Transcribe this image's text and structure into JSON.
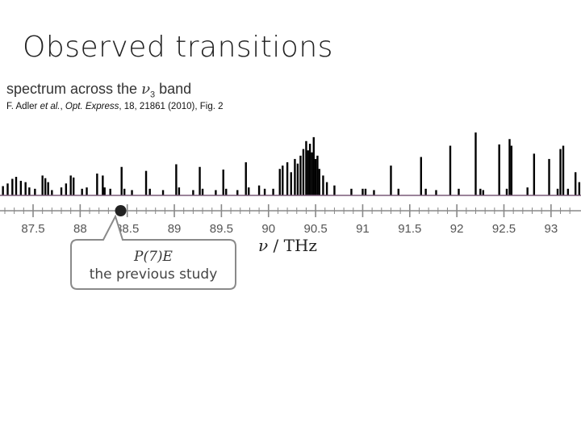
{
  "slide": {
    "title": "Observed transitions"
  },
  "figure": {
    "subtitle_prefix": "spectrum across the ",
    "subtitle_symbol": "ν",
    "subtitle_subscript": "3",
    "subtitle_suffix": " band",
    "citation_authors": "F. Adler ",
    "citation_etal": "et al.",
    "citation_sep": ", ",
    "citation_journal": "Opt. Express",
    "citation_rest": ", 18, 21861 (2010), Fig. 2"
  },
  "axis": {
    "unit_symbol": "ν",
    "unit_rest": " / THz"
  },
  "callout": {
    "line1": "P(7)E",
    "line2": "the previous study"
  },
  "colors": {
    "spectrum": "#000000",
    "baseline": "#7a5a78",
    "axis": "#888888",
    "marker": "#222222"
  },
  "chart_data": {
    "type": "line",
    "xlabel": "ν / THz",
    "xlim": [
      87.0,
      93.3
    ],
    "ticks": [
      "87.5",
      "88",
      "88.5",
      "89",
      "89.5",
      "90",
      "90.5",
      "91",
      "91.5",
      "92",
      "92.5",
      "93"
    ],
    "tick_values": [
      87.5,
      88.0,
      88.5,
      89.0,
      89.5,
      90.0,
      90.5,
      91.0,
      91.5,
      92.0,
      92.5,
      93.0
    ],
    "marked_point": {
      "x": 88.43,
      "label": "P(7)E"
    },
    "series": [
      {
        "lines_x": [
          87.02,
          87.09,
          87.13,
          87.18,
          87.23,
          87.28,
          87.32,
          87.37,
          87.42,
          87.46,
          87.52,
          87.6,
          87.63,
          87.66,
          87.7,
          87.8,
          87.85,
          87.9,
          87.93,
          88.02,
          88.07,
          88.18,
          88.24,
          88.26,
          88.32,
          88.44,
          88.47,
          88.55,
          88.7,
          88.74,
          88.88,
          89.02,
          89.05,
          89.2,
          89.27,
          89.3,
          89.44,
          89.52,
          89.55,
          89.67,
          89.76,
          89.79,
          89.9,
          89.96,
          90.05,
          90.12,
          90.15,
          90.2,
          90.24,
          90.28,
          90.31,
          90.34,
          90.37,
          90.4,
          90.42,
          90.44,
          90.46,
          90.48,
          90.5,
          90.52,
          90.54,
          90.58,
          90.62,
          90.7,
          90.88,
          91.0,
          91.03,
          91.12,
          91.3,
          91.38,
          91.62,
          91.67,
          91.78,
          91.93,
          92.02,
          92.2,
          92.25,
          92.28,
          92.45,
          92.53,
          92.56,
          92.58,
          92.75,
          92.82,
          92.98,
          93.07,
          93.1,
          93.13,
          93.18,
          93.26,
          93.3
        ],
        "heights": [
          0.08,
          0.06,
          0.09,
          0.14,
          0.18,
          0.25,
          0.28,
          0.22,
          0.2,
          0.12,
          0.1,
          0.3,
          0.26,
          0.2,
          0.08,
          0.12,
          0.18,
          0.3,
          0.27,
          0.1,
          0.12,
          0.33,
          0.3,
          0.12,
          0.1,
          0.43,
          0.1,
          0.08,
          0.37,
          0.1,
          0.08,
          0.47,
          0.12,
          0.08,
          0.43,
          0.1,
          0.08,
          0.39,
          0.1,
          0.08,
          0.5,
          0.12,
          0.15,
          0.1,
          0.1,
          0.4,
          0.45,
          0.5,
          0.35,
          0.55,
          0.48,
          0.6,
          0.7,
          0.82,
          0.68,
          0.78,
          0.65,
          0.88,
          0.55,
          0.6,
          0.4,
          0.3,
          0.2,
          0.15,
          0.1,
          0.1,
          0.1,
          0.08,
          0.45,
          0.1,
          0.58,
          0.1,
          0.08,
          0.75,
          0.1,
          0.95,
          0.1,
          0.08,
          0.77,
          0.1,
          0.85,
          0.75,
          0.12,
          0.63,
          0.55,
          0.1,
          0.7,
          0.75,
          0.1,
          0.35,
          0.2
        ]
      }
    ]
  }
}
